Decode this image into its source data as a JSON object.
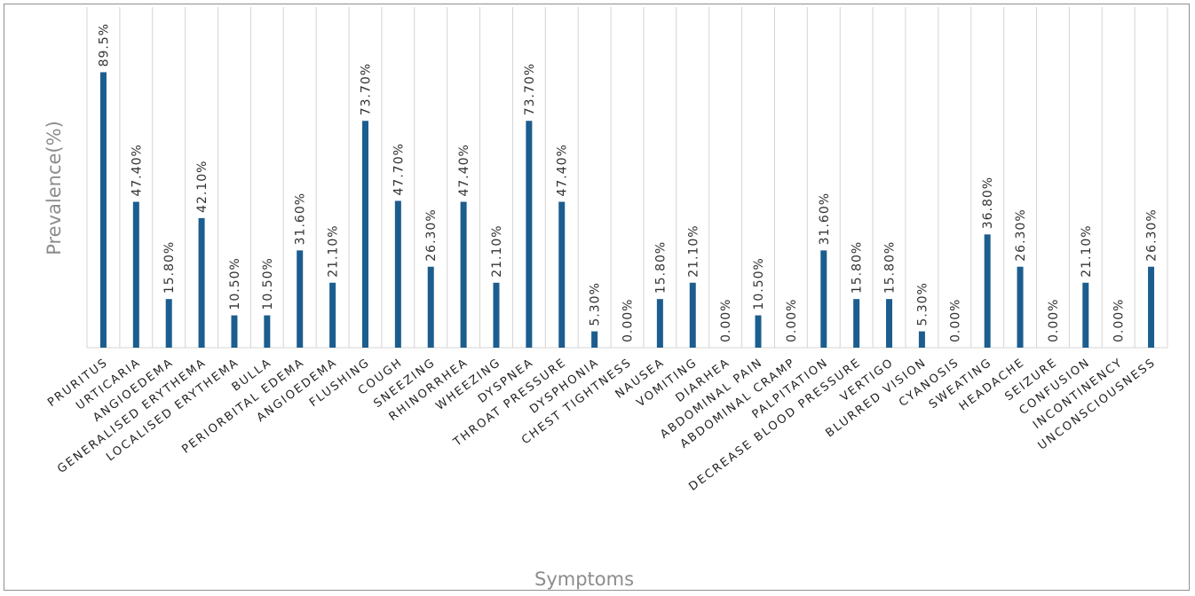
{
  "chart_data": {
    "type": "bar",
    "title": "",
    "xlabel": "Symptoms",
    "ylabel": "Prevalence(%)",
    "ylim": [
      0,
      100
    ],
    "grid": "vertical",
    "bar_color": "#1c5d8f",
    "categories": [
      "PRURITUS",
      "URTICARIA",
      "ANGIOEDEMA",
      "GENERALISED ERYTHEMA",
      "LOCALISED ERYTHEMA",
      "BULLA",
      "PERIORBITAL EDEMA",
      "ANGIOEDEMA",
      "FLUSHING",
      "COUGH",
      "SNEEZING",
      "RHINORRHEA",
      "WHEEZING",
      "DYSPNEA",
      "THROAT PRESSURE",
      "DYSPHONIA",
      "CHEST TIGHTNESS",
      "NAUSEA",
      "VOMITING",
      "DIARHEA",
      "ABDOMINAL PAIN",
      "ABDOMINAL CRAMP",
      "PALPITATION",
      "DECREASE BLOOD PRESSURE",
      "VERTIGO",
      "BLURRED VISION",
      "CYANOSIS",
      "SWEATING",
      "HEADACHE",
      "SEIZURE",
      "CONFUSION",
      "INCONTINENCY",
      "UNCONSCIOUSNESS"
    ],
    "values": [
      89.5,
      47.4,
      15.8,
      42.1,
      10.5,
      10.5,
      31.6,
      21.1,
      73.7,
      47.7,
      26.3,
      47.4,
      21.1,
      73.7,
      47.4,
      5.3,
      0,
      15.8,
      21.1,
      0,
      10.5,
      0,
      31.6,
      15.8,
      15.8,
      5.3,
      0,
      36.8,
      26.3,
      0,
      21.1,
      0,
      26.3
    ],
    "labels": [
      "89.5%",
      "47.40%",
      "15.80%",
      "42.10%",
      "10.50%",
      "10.50%",
      "31.60%",
      "21.10%",
      "73.70%",
      "47.70%",
      "26.30%",
      "47.40%",
      "21.10%",
      "73.70%",
      "47.40%",
      "5.30%",
      "0.00%",
      "15.80%",
      "21.10%",
      "0.00%",
      "10.50%",
      "0.00%",
      "31.60%",
      "15.80%",
      "15.80%",
      "5.30%",
      "0.00%",
      "36.80%",
      "26.30%",
      "0.00%",
      "21.10%",
      "0.00%",
      "26.30%"
    ]
  }
}
